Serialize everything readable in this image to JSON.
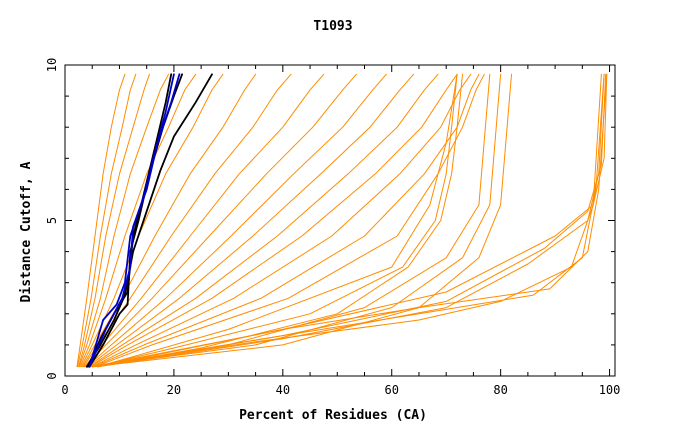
{
  "chart_data": {
    "type": "line",
    "title": "T1093",
    "xlabel": "Percent of Residues (CA)",
    "ylabel": "Distance Cutoff, A",
    "xlim": [
      0,
      101
    ],
    "ylim": [
      0,
      10
    ],
    "xticks": [
      0,
      20,
      40,
      60,
      80,
      100
    ],
    "yticks": [
      0,
      5,
      10
    ],
    "grid": false,
    "legend": "none",
    "colors": {
      "orange": "#ff8c00",
      "black": "#000000",
      "blue": "#0000c8"
    },
    "series": [
      {
        "color": "orange",
        "x": [
          2.2,
          2.8,
          4.0,
          5.5,
          7.0,
          8.5,
          10.0,
          11.0
        ],
        "y": [
          0.3,
          1.0,
          2.5,
          4.5,
          6.5,
          8.0,
          9.2,
          9.7
        ]
      },
      {
        "color": "orange",
        "x": [
          2.3,
          3.2,
          4.8,
          6.5,
          8.5,
          10.5,
          12.0,
          13.0
        ],
        "y": [
          0.3,
          1.0,
          2.5,
          4.5,
          6.5,
          8.0,
          9.2,
          9.7
        ]
      },
      {
        "color": "orange",
        "x": [
          2.5,
          3.6,
          5.5,
          7.5,
          10.0,
          12.5,
          14.5,
          15.5
        ],
        "y": [
          0.3,
          1.0,
          2.5,
          4.5,
          6.5,
          8.0,
          9.2,
          9.7
        ]
      },
      {
        "color": "orange",
        "x": [
          2.6,
          4.0,
          6.5,
          9.0,
          12.0,
          15.0,
          17.5,
          19.0
        ],
        "y": [
          0.3,
          1.0,
          2.5,
          4.5,
          6.5,
          8.0,
          9.2,
          9.7
        ]
      },
      {
        "color": "orange",
        "x": [
          2.8,
          4.5,
          7.5,
          11.0,
          15.0,
          19.0,
          22.0,
          24.0
        ],
        "y": [
          0.3,
          1.0,
          2.5,
          4.5,
          6.5,
          8.0,
          9.2,
          9.7
        ]
      },
      {
        "color": "orange",
        "x": [
          3.0,
          5.0,
          9.0,
          13.5,
          18.5,
          23.5,
          27.0,
          29.0
        ],
        "y": [
          0.3,
          1.0,
          2.5,
          4.5,
          6.5,
          8.0,
          9.2,
          9.7
        ]
      },
      {
        "color": "orange",
        "x": [
          3.2,
          5.5,
          10.5,
          16.5,
          23.0,
          29.0,
          33.0,
          35.0
        ],
        "y": [
          0.3,
          1.0,
          2.5,
          4.5,
          6.5,
          8.0,
          9.2,
          9.7
        ]
      },
      {
        "color": "orange",
        "x": [
          3.4,
          6.0,
          12.0,
          19.5,
          27.5,
          34.5,
          39.0,
          41.5
        ],
        "y": [
          0.3,
          1.0,
          2.5,
          4.5,
          6.5,
          8.0,
          9.2,
          9.7
        ]
      },
      {
        "color": "orange",
        "x": [
          3.6,
          6.8,
          14.0,
          23.0,
          32.0,
          40.0,
          45.0,
          47.5
        ],
        "y": [
          0.3,
          1.0,
          2.5,
          4.5,
          6.5,
          8.0,
          9.2,
          9.7
        ]
      },
      {
        "color": "orange",
        "x": [
          3.8,
          7.5,
          16.0,
          26.5,
          37.0,
          45.5,
          51.0,
          53.5
        ],
        "y": [
          0.3,
          1.0,
          2.5,
          4.5,
          6.5,
          8.0,
          9.2,
          9.7
        ]
      },
      {
        "color": "orange",
        "x": [
          4.0,
          8.5,
          18.5,
          30.5,
          42.0,
          51.0,
          56.5,
          59.0
        ],
        "y": [
          0.3,
          1.0,
          2.5,
          4.5,
          6.5,
          8.0,
          9.2,
          9.7
        ]
      },
      {
        "color": "orange",
        "x": [
          4.2,
          9.5,
          21.0,
          34.5,
          47.0,
          56.0,
          61.5,
          64.0
        ],
        "y": [
          0.3,
          1.0,
          2.5,
          4.5,
          6.5,
          8.0,
          9.2,
          9.7
        ]
      },
      {
        "color": "orange",
        "x": [
          4.5,
          10.5,
          24.0,
          39.0,
          52.0,
          61.0,
          66.0,
          68.5
        ],
        "y": [
          0.3,
          1.0,
          2.5,
          4.5,
          6.5,
          8.0,
          9.2,
          9.7
        ]
      },
      {
        "color": "orange",
        "x": [
          4.7,
          11.5,
          27.0,
          43.5,
          57.0,
          65.5,
          70.0,
          72.0
        ],
        "y": [
          0.3,
          1.0,
          2.5,
          4.5,
          6.5,
          8.0,
          9.2,
          9.7
        ]
      },
      {
        "color": "orange",
        "x": [
          5.0,
          13.0,
          31.0,
          49.0,
          61.5,
          69.0,
          72.5,
          74.5
        ],
        "y": [
          0.3,
          1.0,
          2.5,
          4.5,
          6.5,
          8.0,
          9.2,
          9.7
        ]
      },
      {
        "color": "orange",
        "x": [
          5.2,
          14.5,
          36.0,
          55.0,
          66.0,
          72.0,
          74.5,
          76.0
        ],
        "y": [
          0.3,
          1.0,
          2.5,
          4.5,
          6.5,
          8.0,
          9.2,
          9.7
        ]
      },
      {
        "color": "orange",
        "x": [
          5.5,
          16.0,
          41.0,
          61.0,
          68.5,
          73.0,
          75.5,
          77.0
        ],
        "y": [
          0.3,
          1.0,
          2.5,
          4.5,
          6.5,
          8.0,
          9.2,
          9.7
        ]
      },
      {
        "color": "orange",
        "x": [
          5.5,
          20.0,
          45.0,
          62.0,
          68.0,
          70.0,
          71.0,
          72.0
        ],
        "y": [
          0.3,
          0.9,
          2.0,
          3.5,
          5.0,
          6.5,
          8.0,
          9.7
        ]
      },
      {
        "color": "orange",
        "x": [
          6.0,
          25.0,
          50.0,
          63.0,
          69.0,
          71.0,
          72.0,
          73.0
        ],
        "y": [
          0.3,
          0.9,
          2.0,
          3.5,
          5.0,
          6.5,
          8.0,
          9.7
        ]
      },
      {
        "color": "orange",
        "x": [
          6.0,
          30.0,
          60.0,
          67.0,
          70.0,
          72.0
        ],
        "y": [
          0.3,
          1.5,
          3.5,
          5.5,
          7.5,
          9.7
        ]
      },
      {
        "color": "orange",
        "x": [
          5.0,
          30.0,
          55.0,
          70.0,
          76.0,
          78.0
        ],
        "y": [
          0.3,
          1.0,
          2.2,
          3.8,
          5.5,
          9.7
        ]
      },
      {
        "color": "orange",
        "x": [
          5.0,
          35.0,
          60.0,
          73.0,
          78.0,
          80.0
        ],
        "y": [
          0.3,
          1.0,
          2.2,
          3.8,
          5.5,
          9.7
        ]
      },
      {
        "color": "orange",
        "x": [
          5.0,
          40.0,
          65.0,
          76.0,
          80.0,
          82.0
        ],
        "y": [
          0.3,
          1.0,
          2.2,
          3.8,
          5.5,
          9.7
        ]
      },
      {
        "color": "orange",
        "x": [
          6.0,
          40.0,
          70.0,
          90.0,
          97.0,
          99.0,
          99.5
        ],
        "y": [
          0.3,
          1.5,
          2.7,
          4.5,
          5.5,
          7.0,
          9.7
        ]
      },
      {
        "color": "orange",
        "x": [
          6.0,
          40.0,
          70.0,
          88.0,
          96.0,
          98.5,
          99.3
        ],
        "y": [
          0.3,
          1.3,
          2.4,
          4.1,
          5.3,
          6.8,
          9.7
        ]
      },
      {
        "color": "orange",
        "x": [
          6.0,
          40.0,
          70.0,
          85.0,
          96.0,
          98.0,
          99.0
        ],
        "y": [
          0.3,
          1.2,
          2.2,
          3.6,
          5.0,
          6.5,
          9.7
        ]
      },
      {
        "color": "orange",
        "x": [
          5.0,
          40.0,
          65.0,
          89.0,
          96.0,
          98.0,
          99.5
        ],
        "y": [
          0.3,
          1.5,
          2.2,
          2.8,
          4.0,
          6.0,
          9.7
        ]
      },
      {
        "color": "orange",
        "x": [
          5.0,
          40.0,
          65.0,
          86.0,
          95.0,
          97.5,
          99.0
        ],
        "y": [
          0.3,
          1.3,
          2.0,
          2.6,
          3.8,
          6.0,
          9.7
        ]
      },
      {
        "color": "orange",
        "x": [
          5.0,
          35.0,
          65.0,
          80.0,
          93.0,
          97.0,
          98.5
        ],
        "y": [
          0.3,
          1.1,
          1.8,
          2.4,
          3.5,
          5.5,
          9.7
        ]
      },
      {
        "color": "black",
        "x": [
          4.2,
          6.5,
          9.0,
          11.5,
          12.5,
          14.0,
          15.5,
          17.0,
          18.5,
          19.5
        ],
        "y": [
          0.3,
          1.2,
          2.0,
          2.7,
          4.5,
          5.5,
          6.6,
          7.7,
          8.8,
          9.7
        ]
      },
      {
        "color": "black",
        "x": [
          4.5,
          7.0,
          10.0,
          11.5,
          12.0,
          13.5,
          15.5,
          18.0,
          20.0,
          21.5
        ],
        "y": [
          0.3,
          1.0,
          2.0,
          2.3,
          4.0,
          5.0,
          6.5,
          8.0,
          9.0,
          9.7
        ]
      },
      {
        "color": "black",
        "x": [
          4.0,
          6.5,
          9.0,
          11.0,
          12.5,
          15.0,
          17.5,
          20.0,
          24.0,
          27.0
        ],
        "y": [
          0.3,
          1.0,
          1.8,
          2.6,
          4.0,
          5.3,
          6.6,
          7.7,
          8.8,
          9.7
        ]
      },
      {
        "color": "blue",
        "x": [
          4.5,
          7.0,
          9.5,
          11.0,
          12.0,
          14.5,
          16.5,
          18.5,
          20.0
        ],
        "y": [
          0.3,
          1.8,
          2.3,
          3.0,
          4.5,
          5.8,
          7.2,
          8.5,
          9.7
        ]
      },
      {
        "color": "blue",
        "x": [
          4.5,
          7.5,
          10.5,
          12.0,
          12.5,
          15.0,
          17.0,
          19.5,
          21.0
        ],
        "y": [
          0.3,
          1.5,
          2.5,
          3.5,
          4.8,
          6.0,
          7.5,
          8.8,
          9.7
        ]
      }
    ]
  }
}
